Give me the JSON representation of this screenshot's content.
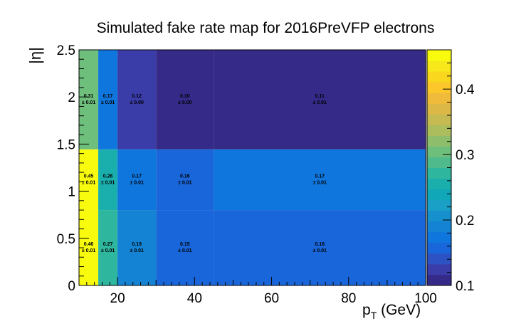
{
  "chart_data": {
    "type": "heatmap",
    "title": "Simulated fake rate map for 2016PreVFP electrons",
    "xlabel": {
      "base": "p",
      "sub": "T",
      "rest": " (GeV)"
    },
    "ylabel": "|η|",
    "xlim": [
      10,
      100
    ],
    "ylim": [
      0,
      2.5
    ],
    "x_ticks": [
      20,
      40,
      60,
      80,
      100
    ],
    "y_ticks": [
      0,
      0.5,
      1,
      1.5,
      2,
      2.5
    ],
    "x_edges": [
      10,
      15,
      20,
      30,
      45,
      100
    ],
    "y_edges": [
      0,
      0.8,
      1.4442,
      2.5
    ],
    "values": [
      [
        0.46,
        0.27,
        0.19,
        0.15,
        0.16
      ],
      [
        0.45,
        0.26,
        0.17,
        0.16,
        0.17
      ],
      [
        0.31,
        0.17,
        0.12,
        0.1,
        0.11
      ]
    ],
    "errors": [
      [
        0.01,
        0.01,
        0.01,
        0.01,
        0.01
      ],
      [
        0.01,
        0.01,
        0.01,
        0.01,
        0.01
      ],
      [
        0.01,
        0.01,
        0.0,
        0.0,
        0.01
      ]
    ],
    "label_rows": [
      {
        "vals": [
          "0.46",
          "0.27",
          "0.19",
          "0.15",
          "0.16"
        ],
        "errs": [
          "± 0.01",
          "± 0.01",
          "± 0.01",
          "± 0.01",
          "± 0.01"
        ]
      },
      {
        "vals": [
          "0.45",
          "0.26",
          "0.17",
          "0.16",
          "0.17"
        ],
        "errs": [
          "± 0.01",
          "± 0.01",
          "± 0.01",
          "± 0.01",
          "± 0.01"
        ]
      },
      {
        "vals": [
          "0.31",
          "0.17",
          "0.12",
          "0.10",
          "0.11"
        ],
        "errs": [
          "± 0.01",
          "± 0.01",
          "± 0.00",
          "± 0.00",
          "± 0.01"
        ]
      }
    ],
    "z_range": [
      0.1,
      0.46
    ],
    "z_ticks": [
      0.1,
      0.2,
      0.3,
      0.4
    ],
    "colorscale": [
      "#352a87",
      "#3a3ca8",
      "#2d52c4",
      "#1966da",
      "#0f76de",
      "#1483d4",
      "#1690cd",
      "#1aa0c6",
      "#10a8b8",
      "#1aafac",
      "#2fb69e",
      "#4fbb8d",
      "#6ebe7c",
      "#8ebe6b",
      "#acbd5e",
      "#c6ba52",
      "#dcb847",
      "#f0bb3a",
      "#fbc72b",
      "#f9d71f",
      "#f6e81b",
      "#f9fb0e"
    ],
    "grid": false,
    "colorbar": "right"
  }
}
